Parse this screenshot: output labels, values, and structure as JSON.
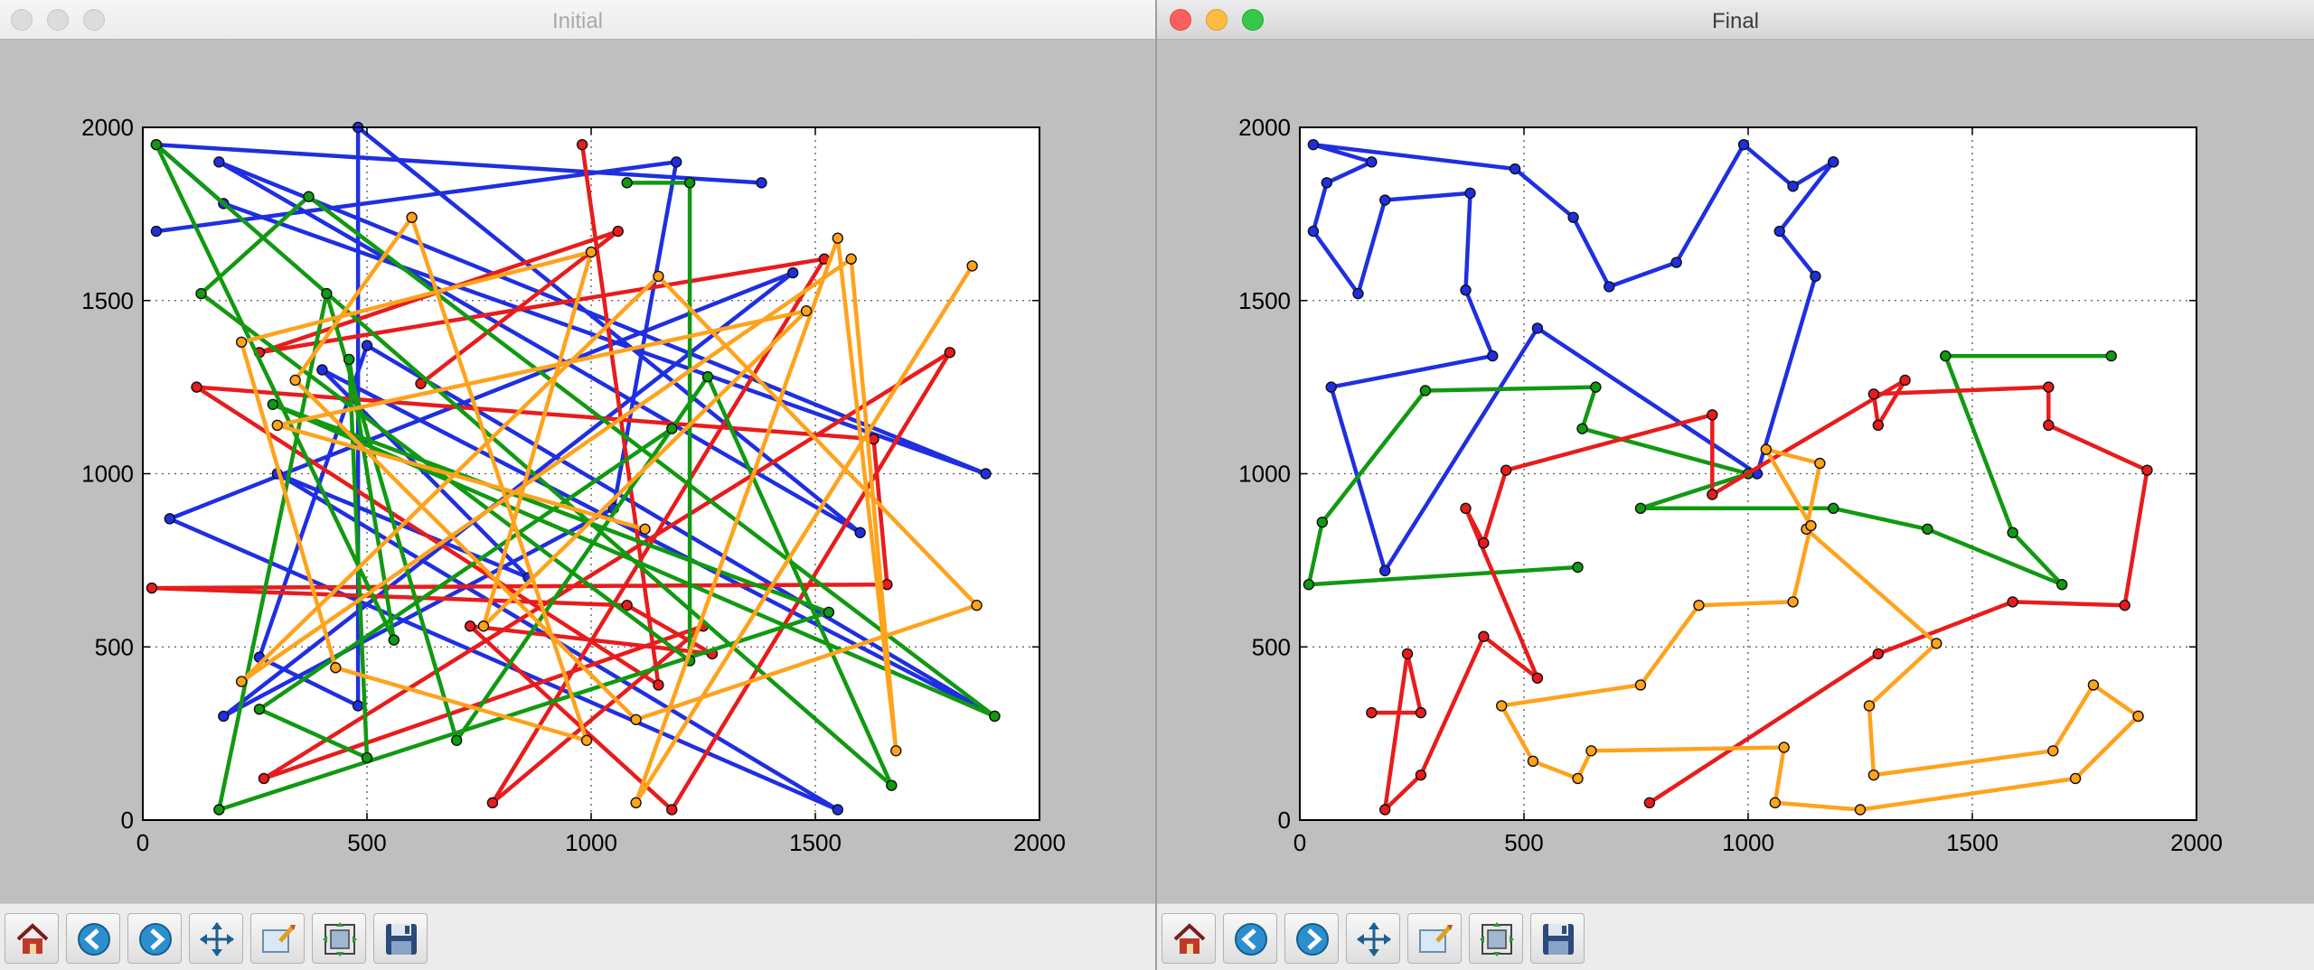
{
  "windows": [
    {
      "title": "Initial",
      "active": false
    },
    {
      "title": "Final",
      "active": true
    }
  ],
  "toolbar": {
    "icons": [
      "home-icon",
      "back-arrow-icon",
      "forward-arrow-icon",
      "pan-icon",
      "zoom-rect-icon",
      "configure-subplots-icon",
      "save-icon"
    ]
  },
  "chart_data": [
    {
      "type": "line",
      "title": "",
      "xlim": [
        0,
        2000
      ],
      "ylim": [
        0,
        2000
      ],
      "xticks": [
        0,
        500,
        1000,
        1500,
        2000
      ],
      "yticks": [
        0,
        500,
        1000,
        1500,
        2000
      ],
      "grid": true,
      "series": [
        {
          "color": "#1f2fe0",
          "points": [
            [
              1380,
              1840
            ],
            [
              30,
              1950
            ],
            [
              180,
              1780
            ],
            [
              1880,
              1000
            ],
            [
              170,
              1900
            ],
            [
              1600,
              830
            ],
            [
              480,
              2000
            ],
            [
              480,
              330
            ],
            [
              260,
              470
            ],
            [
              500,
              1370
            ],
            [
              1900,
              300
            ],
            [
              400,
              1300
            ],
            [
              860,
              700
            ],
            [
              300,
              1000
            ],
            [
              1550,
              30
            ],
            [
              60,
              870
            ],
            [
              1450,
              1580
            ],
            [
              180,
              300
            ],
            [
              1050,
              900
            ],
            [
              1190,
              1900
            ],
            [
              30,
              1700
            ]
          ]
        },
        {
          "color": "#e81c1c",
          "points": [
            [
              980,
              1950
            ],
            [
              1150,
              390
            ],
            [
              120,
              1250
            ],
            [
              1630,
              1100
            ],
            [
              1660,
              680
            ],
            [
              20,
              670
            ],
            [
              1080,
              620
            ],
            [
              1270,
              480
            ],
            [
              730,
              560
            ],
            [
              1180,
              30
            ],
            [
              1800,
              1350
            ],
            [
              270,
              120
            ],
            [
              1250,
              560
            ],
            [
              780,
              50
            ],
            [
              1520,
              1620
            ],
            [
              260,
              1350
            ],
            [
              1060,
              1700
            ],
            [
              620,
              1260
            ]
          ]
        },
        {
          "color": "#119911",
          "points": [
            [
              1080,
              1840
            ],
            [
              1220,
              1840
            ],
            [
              1220,
              460
            ],
            [
              130,
              1520
            ],
            [
              370,
              1800
            ],
            [
              1900,
              300
            ],
            [
              290,
              1200
            ],
            [
              1530,
              600
            ],
            [
              170,
              30
            ],
            [
              410,
              1520
            ],
            [
              700,
              230
            ],
            [
              1260,
              1280
            ],
            [
              1670,
              100
            ],
            [
              30,
              1950
            ],
            [
              560,
              520
            ],
            [
              460,
              1330
            ],
            [
              500,
              180
            ],
            [
              260,
              320
            ],
            [
              1180,
              1130
            ]
          ]
        },
        {
          "color": "#ffa21c",
          "points": [
            [
              1850,
              1600
            ],
            [
              1100,
              50
            ],
            [
              1550,
              1680
            ],
            [
              1680,
              200
            ],
            [
              1580,
              1620
            ],
            [
              220,
              400
            ],
            [
              1150,
              1570
            ],
            [
              1860,
              620
            ],
            [
              1100,
              290
            ],
            [
              340,
              1270
            ],
            [
              600,
              1740
            ],
            [
              990,
              230
            ],
            [
              430,
              440
            ],
            [
              220,
              1380
            ],
            [
              1000,
              1640
            ],
            [
              760,
              560
            ],
            [
              1480,
              1470
            ],
            [
              300,
              1140
            ],
            [
              1120,
              840
            ]
          ]
        }
      ]
    },
    {
      "type": "line",
      "title": "",
      "xlim": [
        0,
        2000
      ],
      "ylim": [
        0,
        2000
      ],
      "xticks": [
        0,
        500,
        1000,
        1500,
        2000
      ],
      "yticks": [
        0,
        500,
        1000,
        1500,
        2000
      ],
      "grid": true,
      "series": [
        {
          "color": "#1f2fe0",
          "points": [
            [
              1190,
              1900
            ],
            [
              1070,
              1700
            ],
            [
              1150,
              1570
            ],
            [
              1020,
              1000
            ],
            [
              530,
              1420
            ],
            [
              190,
              720
            ],
            [
              70,
              1250
            ],
            [
              430,
              1340
            ],
            [
              370,
              1530
            ],
            [
              380,
              1810
            ],
            [
              190,
              1790
            ],
            [
              130,
              1520
            ],
            [
              30,
              1700
            ],
            [
              60,
              1840
            ],
            [
              160,
              1900
            ],
            [
              30,
              1950
            ],
            [
              480,
              1880
            ],
            [
              610,
              1740
            ],
            [
              690,
              1540
            ],
            [
              840,
              1610
            ],
            [
              990,
              1950
            ],
            [
              1100,
              1830
            ],
            [
              1190,
              1900
            ]
          ]
        },
        {
          "color": "#119911",
          "points": [
            [
              1810,
              1340
            ],
            [
              1440,
              1340
            ],
            [
              1590,
              830
            ],
            [
              1700,
              680
            ],
            [
              1400,
              840
            ],
            [
              1190,
              900
            ],
            [
              760,
              900
            ],
            [
              1000,
              1000
            ],
            [
              630,
              1130
            ],
            [
              660,
              1250
            ],
            [
              280,
              1240
            ],
            [
              50,
              860
            ],
            [
              20,
              680
            ],
            [
              620,
              730
            ]
          ]
        },
        {
          "color": "#e81c1c",
          "points": [
            [
              160,
              310
            ],
            [
              270,
              310
            ],
            [
              240,
              480
            ],
            [
              190,
              30
            ],
            [
              270,
              130
            ],
            [
              410,
              530
            ],
            [
              530,
              410
            ],
            [
              370,
              900
            ],
            [
              410,
              800
            ],
            [
              460,
              1010
            ],
            [
              920,
              1170
            ],
            [
              920,
              940
            ],
            [
              1350,
              1270
            ],
            [
              1290,
              1140
            ],
            [
              1280,
              1230
            ],
            [
              1670,
              1250
            ],
            [
              1670,
              1140
            ],
            [
              1890,
              1010
            ],
            [
              1840,
              620
            ],
            [
              1590,
              630
            ],
            [
              1290,
              480
            ],
            [
              780,
              50
            ]
          ]
        },
        {
          "color": "#ffa21c",
          "points": [
            [
              1870,
              300
            ],
            [
              1770,
              390
            ],
            [
              1680,
              200
            ],
            [
              1280,
              130
            ],
            [
              1270,
              330
            ],
            [
              1420,
              510
            ],
            [
              1130,
              840
            ],
            [
              1160,
              1030
            ],
            [
              1040,
              1070
            ],
            [
              1140,
              850
            ],
            [
              1100,
              630
            ],
            [
              890,
              620
            ],
            [
              760,
              390
            ],
            [
              450,
              330
            ],
            [
              520,
              170
            ],
            [
              620,
              120
            ],
            [
              650,
              200
            ],
            [
              1080,
              210
            ],
            [
              1060,
              50
            ],
            [
              1250,
              30
            ],
            [
              1730,
              120
            ],
            [
              1870,
              300
            ]
          ]
        }
      ]
    }
  ]
}
